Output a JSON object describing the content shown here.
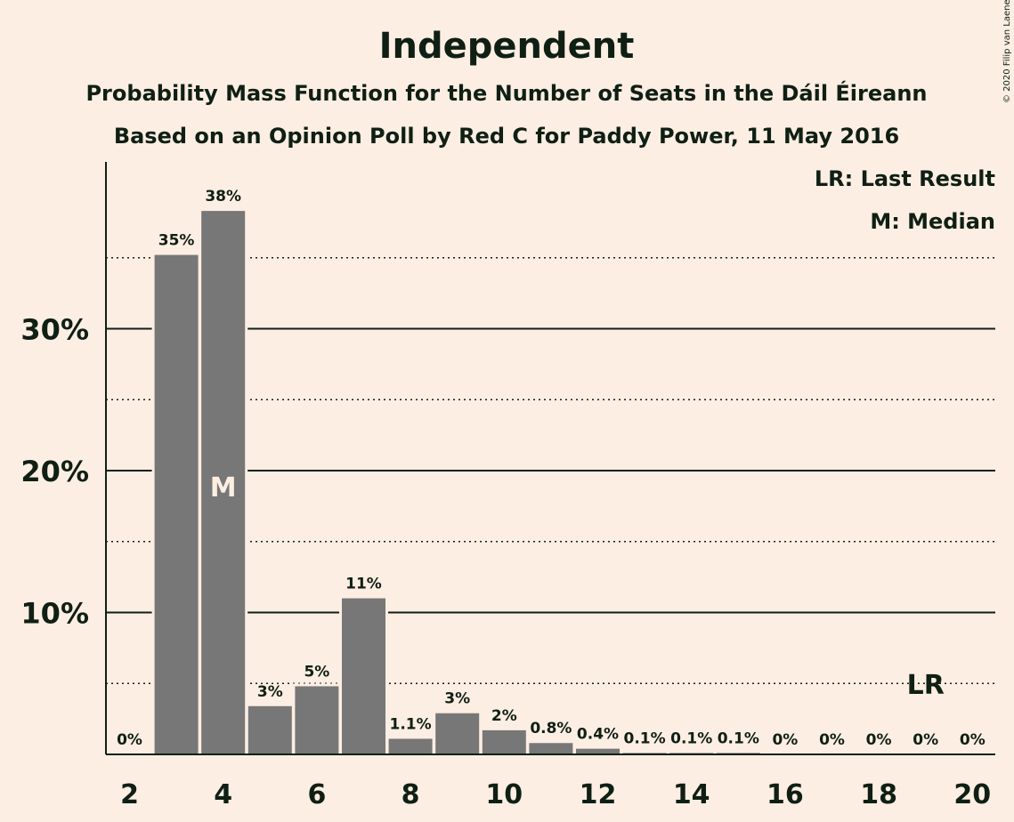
{
  "chart_data": {
    "type": "bar",
    "title": "Independent",
    "subtitle_lines": [
      "Probability Mass Function for the Number of Seats in the Dáil Éireann",
      "Based on an Opinion Poll by Red C for Paddy Power, 11 May 2016"
    ],
    "copyright": "© 2020 Filip van Laenen",
    "legend": {
      "lr": "LR: Last Result",
      "median": "M: Median"
    },
    "x": [
      2,
      3,
      4,
      5,
      6,
      7,
      8,
      9,
      10,
      11,
      12,
      13,
      14,
      15,
      16,
      17,
      18,
      19,
      20
    ],
    "values": [
      0,
      35.2,
      38.3,
      3.4,
      4.8,
      11.0,
      1.1,
      2.9,
      1.7,
      0.8,
      0.4,
      0.1,
      0.1,
      0.1,
      0,
      0,
      0,
      0,
      0
    ],
    "data_labels": [
      "0%",
      "35%",
      "38%",
      "3%",
      "5%",
      "11%",
      "1.1%",
      "3%",
      "2%",
      "0.8%",
      "0.4%",
      "0.1%",
      "0.1%",
      "0.1%",
      "0%",
      "0%",
      "0%",
      "0%",
      "0%"
    ],
    "x_ticks": [
      2,
      4,
      6,
      8,
      10,
      12,
      14,
      16,
      18,
      20
    ],
    "y_ticks": [
      {
        "value": 10,
        "label": "10%"
      },
      {
        "value": 20,
        "label": "20%"
      },
      {
        "value": 30,
        "label": "30%"
      }
    ],
    "y_minor_gridlines": [
      5,
      15,
      25,
      35
    ],
    "ylim": [
      0,
      41.5
    ],
    "median_seat": 4,
    "median_marker": "M",
    "last_result_seat": 19,
    "last_result_marker": "LR",
    "colors": {
      "background": "#FDEEE3",
      "bar": "#777777",
      "text": "#0F1F14"
    }
  }
}
